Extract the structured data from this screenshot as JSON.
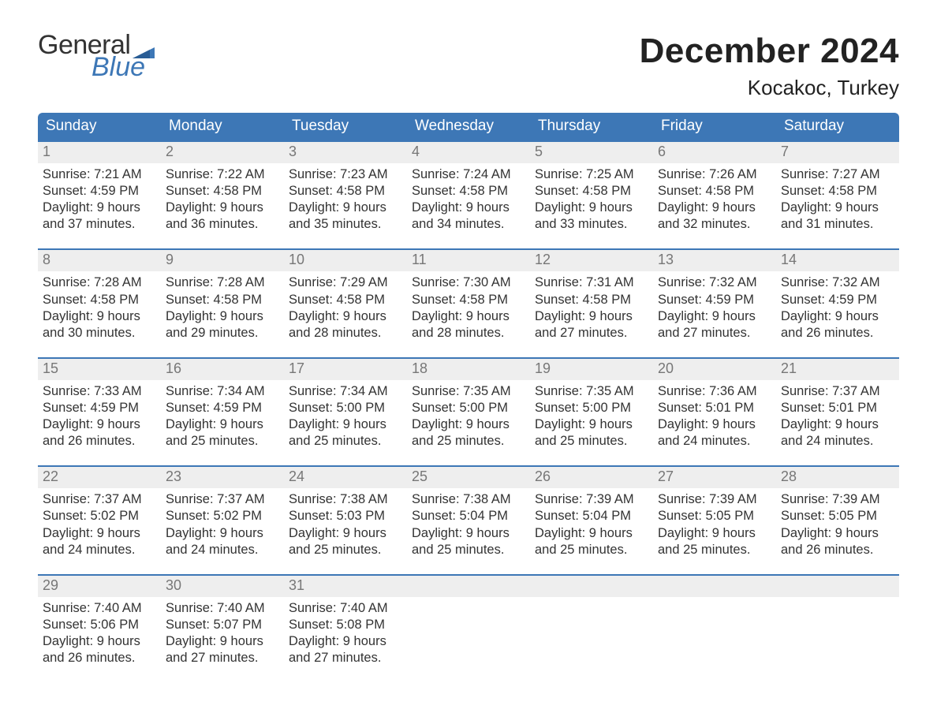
{
  "logo": {
    "line1": "General",
    "line2": "Blue"
  },
  "title": "December 2024",
  "location": "Kocakoc, Turkey",
  "colors": {
    "header_bg": "#3d77b6",
    "daynum_bg": "#eeeeee",
    "daynum_fg": "#777777",
    "text_fg": "#333333",
    "logo_blue": "#3d77b6"
  },
  "weekday_labels": [
    "Sunday",
    "Monday",
    "Tuesday",
    "Wednesday",
    "Thursday",
    "Friday",
    "Saturday"
  ],
  "weeks": [
    [
      {
        "n": "1",
        "sunrise": "Sunrise: 7:21 AM",
        "sunset": "Sunset: 4:59 PM",
        "day1": "Daylight: 9 hours",
        "day2": "and 37 minutes."
      },
      {
        "n": "2",
        "sunrise": "Sunrise: 7:22 AM",
        "sunset": "Sunset: 4:58 PM",
        "day1": "Daylight: 9 hours",
        "day2": "and 36 minutes."
      },
      {
        "n": "3",
        "sunrise": "Sunrise: 7:23 AM",
        "sunset": "Sunset: 4:58 PM",
        "day1": "Daylight: 9 hours",
        "day2": "and 35 minutes."
      },
      {
        "n": "4",
        "sunrise": "Sunrise: 7:24 AM",
        "sunset": "Sunset: 4:58 PM",
        "day1": "Daylight: 9 hours",
        "day2": "and 34 minutes."
      },
      {
        "n": "5",
        "sunrise": "Sunrise: 7:25 AM",
        "sunset": "Sunset: 4:58 PM",
        "day1": "Daylight: 9 hours",
        "day2": "and 33 minutes."
      },
      {
        "n": "6",
        "sunrise": "Sunrise: 7:26 AM",
        "sunset": "Sunset: 4:58 PM",
        "day1": "Daylight: 9 hours",
        "day2": "and 32 minutes."
      },
      {
        "n": "7",
        "sunrise": "Sunrise: 7:27 AM",
        "sunset": "Sunset: 4:58 PM",
        "day1": "Daylight: 9 hours",
        "day2": "and 31 minutes."
      }
    ],
    [
      {
        "n": "8",
        "sunrise": "Sunrise: 7:28 AM",
        "sunset": "Sunset: 4:58 PM",
        "day1": "Daylight: 9 hours",
        "day2": "and 30 minutes."
      },
      {
        "n": "9",
        "sunrise": "Sunrise: 7:28 AM",
        "sunset": "Sunset: 4:58 PM",
        "day1": "Daylight: 9 hours",
        "day2": "and 29 minutes."
      },
      {
        "n": "10",
        "sunrise": "Sunrise: 7:29 AM",
        "sunset": "Sunset: 4:58 PM",
        "day1": "Daylight: 9 hours",
        "day2": "and 28 minutes."
      },
      {
        "n": "11",
        "sunrise": "Sunrise: 7:30 AM",
        "sunset": "Sunset: 4:58 PM",
        "day1": "Daylight: 9 hours",
        "day2": "and 28 minutes."
      },
      {
        "n": "12",
        "sunrise": "Sunrise: 7:31 AM",
        "sunset": "Sunset: 4:58 PM",
        "day1": "Daylight: 9 hours",
        "day2": "and 27 minutes."
      },
      {
        "n": "13",
        "sunrise": "Sunrise: 7:32 AM",
        "sunset": "Sunset: 4:59 PM",
        "day1": "Daylight: 9 hours",
        "day2": "and 27 minutes."
      },
      {
        "n": "14",
        "sunrise": "Sunrise: 7:32 AM",
        "sunset": "Sunset: 4:59 PM",
        "day1": "Daylight: 9 hours",
        "day2": "and 26 minutes."
      }
    ],
    [
      {
        "n": "15",
        "sunrise": "Sunrise: 7:33 AM",
        "sunset": "Sunset: 4:59 PM",
        "day1": "Daylight: 9 hours",
        "day2": "and 26 minutes."
      },
      {
        "n": "16",
        "sunrise": "Sunrise: 7:34 AM",
        "sunset": "Sunset: 4:59 PM",
        "day1": "Daylight: 9 hours",
        "day2": "and 25 minutes."
      },
      {
        "n": "17",
        "sunrise": "Sunrise: 7:34 AM",
        "sunset": "Sunset: 5:00 PM",
        "day1": "Daylight: 9 hours",
        "day2": "and 25 minutes."
      },
      {
        "n": "18",
        "sunrise": "Sunrise: 7:35 AM",
        "sunset": "Sunset: 5:00 PM",
        "day1": "Daylight: 9 hours",
        "day2": "and 25 minutes."
      },
      {
        "n": "19",
        "sunrise": "Sunrise: 7:35 AM",
        "sunset": "Sunset: 5:00 PM",
        "day1": "Daylight: 9 hours",
        "day2": "and 25 minutes."
      },
      {
        "n": "20",
        "sunrise": "Sunrise: 7:36 AM",
        "sunset": "Sunset: 5:01 PM",
        "day1": "Daylight: 9 hours",
        "day2": "and 24 minutes."
      },
      {
        "n": "21",
        "sunrise": "Sunrise: 7:37 AM",
        "sunset": "Sunset: 5:01 PM",
        "day1": "Daylight: 9 hours",
        "day2": "and 24 minutes."
      }
    ],
    [
      {
        "n": "22",
        "sunrise": "Sunrise: 7:37 AM",
        "sunset": "Sunset: 5:02 PM",
        "day1": "Daylight: 9 hours",
        "day2": "and 24 minutes."
      },
      {
        "n": "23",
        "sunrise": "Sunrise: 7:37 AM",
        "sunset": "Sunset: 5:02 PM",
        "day1": "Daylight: 9 hours",
        "day2": "and 24 minutes."
      },
      {
        "n": "24",
        "sunrise": "Sunrise: 7:38 AM",
        "sunset": "Sunset: 5:03 PM",
        "day1": "Daylight: 9 hours",
        "day2": "and 25 minutes."
      },
      {
        "n": "25",
        "sunrise": "Sunrise: 7:38 AM",
        "sunset": "Sunset: 5:04 PM",
        "day1": "Daylight: 9 hours",
        "day2": "and 25 minutes."
      },
      {
        "n": "26",
        "sunrise": "Sunrise: 7:39 AM",
        "sunset": "Sunset: 5:04 PM",
        "day1": "Daylight: 9 hours",
        "day2": "and 25 minutes."
      },
      {
        "n": "27",
        "sunrise": "Sunrise: 7:39 AM",
        "sunset": "Sunset: 5:05 PM",
        "day1": "Daylight: 9 hours",
        "day2": "and 25 minutes."
      },
      {
        "n": "28",
        "sunrise": "Sunrise: 7:39 AM",
        "sunset": "Sunset: 5:05 PM",
        "day1": "Daylight: 9 hours",
        "day2": "and 26 minutes."
      }
    ],
    [
      {
        "n": "29",
        "sunrise": "Sunrise: 7:40 AM",
        "sunset": "Sunset: 5:06 PM",
        "day1": "Daylight: 9 hours",
        "day2": "and 26 minutes."
      },
      {
        "n": "30",
        "sunrise": "Sunrise: 7:40 AM",
        "sunset": "Sunset: 5:07 PM",
        "day1": "Daylight: 9 hours",
        "day2": "and 27 minutes."
      },
      {
        "n": "31",
        "sunrise": "Sunrise: 7:40 AM",
        "sunset": "Sunset: 5:08 PM",
        "day1": "Daylight: 9 hours",
        "day2": "and 27 minutes."
      },
      {
        "n": "",
        "sunrise": "",
        "sunset": "",
        "day1": "",
        "day2": ""
      },
      {
        "n": "",
        "sunrise": "",
        "sunset": "",
        "day1": "",
        "day2": ""
      },
      {
        "n": "",
        "sunrise": "",
        "sunset": "",
        "day1": "",
        "day2": ""
      },
      {
        "n": "",
        "sunrise": "",
        "sunset": "",
        "day1": "",
        "day2": ""
      }
    ]
  ]
}
